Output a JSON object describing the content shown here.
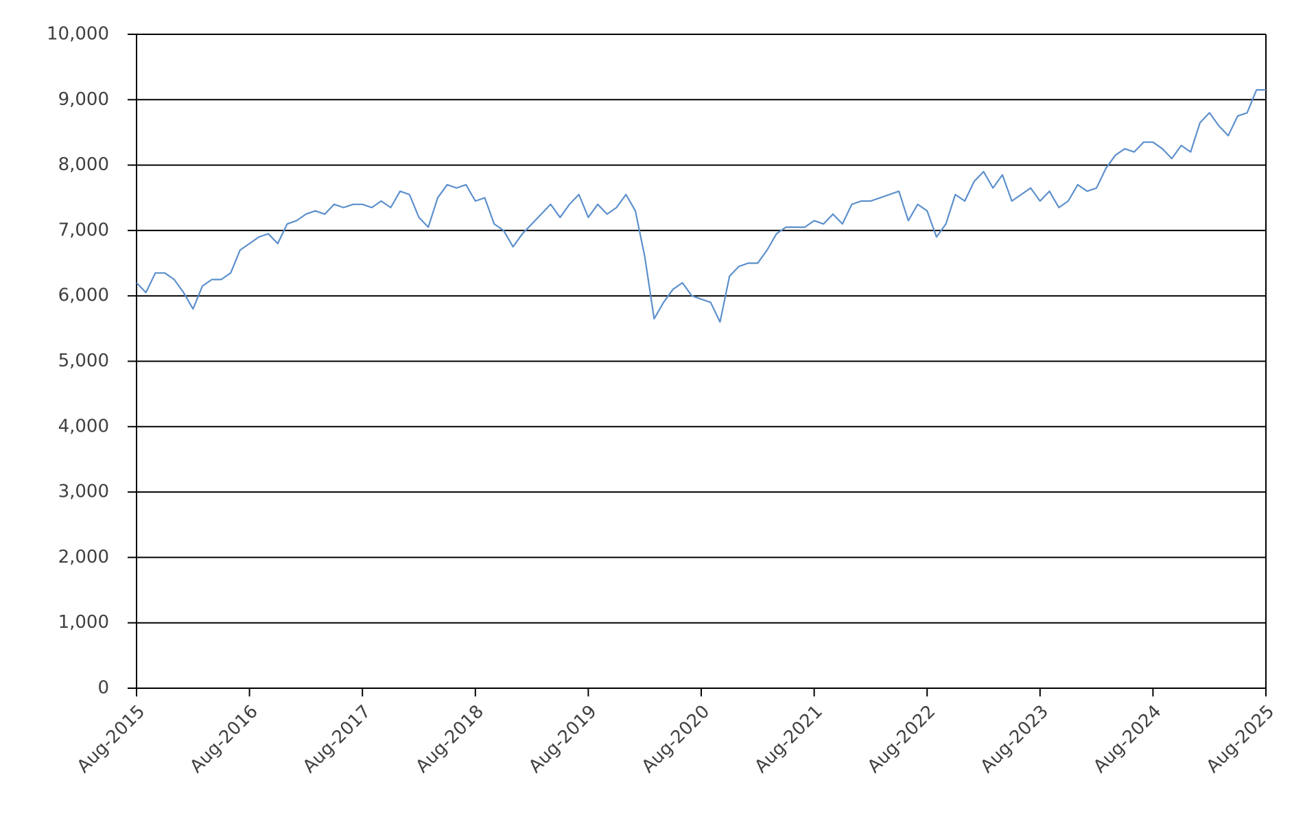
{
  "chart_data": {
    "type": "line",
    "color": "#5b8fcc",
    "x": [
      "2015-08",
      "2015-09",
      "2015-10",
      "2015-11",
      "2015-12",
      "2016-01",
      "2016-02",
      "2016-03",
      "2016-04",
      "2016-05",
      "2016-06",
      "2016-07",
      "2016-08",
      "2016-09",
      "2016-10",
      "2016-11",
      "2016-12",
      "2017-01",
      "2017-02",
      "2017-03",
      "2017-04",
      "2017-05",
      "2017-06",
      "2017-07",
      "2017-08",
      "2017-09",
      "2017-10",
      "2017-11",
      "2017-12",
      "2018-01",
      "2018-02",
      "2018-03",
      "2018-04",
      "2018-05",
      "2018-06",
      "2018-07",
      "2018-08",
      "2018-09",
      "2018-10",
      "2018-11",
      "2018-12",
      "2019-01",
      "2019-02",
      "2019-03",
      "2019-04",
      "2019-05",
      "2019-06",
      "2019-07",
      "2019-08",
      "2019-09",
      "2019-10",
      "2019-11",
      "2019-12",
      "2020-01",
      "2020-02",
      "2020-03",
      "2020-04",
      "2020-05",
      "2020-06",
      "2020-07",
      "2020-08",
      "2020-09",
      "2020-10",
      "2020-11",
      "2020-12",
      "2021-01",
      "2021-02",
      "2021-03",
      "2021-04",
      "2021-05",
      "2021-06",
      "2021-07",
      "2021-08",
      "2021-09",
      "2021-10",
      "2021-11",
      "2021-12",
      "2022-01",
      "2022-02",
      "2022-03",
      "2022-04",
      "2022-05",
      "2022-06",
      "2022-07",
      "2022-08",
      "2022-09",
      "2022-10",
      "2022-11",
      "2022-12",
      "2023-01",
      "2023-02",
      "2023-03",
      "2023-04",
      "2023-05",
      "2023-06",
      "2023-07",
      "2023-08",
      "2023-09",
      "2023-10",
      "2023-11",
      "2023-12",
      "2024-01",
      "2024-02",
      "2024-03",
      "2024-04",
      "2024-05",
      "2024-06",
      "2024-07",
      "2024-08",
      "2024-09",
      "2024-10",
      "2024-11",
      "2024-12",
      "2025-01",
      "2025-02",
      "2025-03",
      "2025-04",
      "2025-05",
      "2025-06",
      "2025-07",
      "2025-08"
    ],
    "values": [
      6200,
      6050,
      6350,
      6350,
      6250,
      6050,
      5800,
      6150,
      6250,
      6250,
      6350,
      6700,
      6800,
      6900,
      6950,
      6800,
      7100,
      7150,
      7250,
      7300,
      7250,
      7400,
      7350,
      7400,
      7400,
      7350,
      7450,
      7350,
      7600,
      7550,
      7200,
      7050,
      7500,
      7700,
      7650,
      7700,
      7450,
      7500,
      7100,
      7000,
      6750,
      6950,
      7100,
      7250,
      7400,
      7200,
      7400,
      7550,
      7200,
      7400,
      7250,
      7350,
      7550,
      7300,
      6600,
      5650,
      5900,
      6100,
      6200,
      6000,
      5950,
      5900,
      5600,
      6300,
      6450,
      6500,
      6500,
      6700,
      6950,
      7050,
      7050,
      7050,
      7150,
      7100,
      7250,
      7100,
      7400,
      7450,
      7450,
      7500,
      7550,
      7600,
      7150,
      7400,
      7300,
      6900,
      7100,
      7550,
      7450,
      7750,
      7900,
      7650,
      7850,
      7450,
      7550,
      7650,
      7450,
      7600,
      7350,
      7450,
      7700,
      7600,
      7650,
      7950,
      8150,
      8250,
      8200,
      8350,
      8350,
      8250,
      8100,
      8300,
      8200,
      8650,
      8800,
      8600,
      8450,
      8750,
      8800,
      9150,
      9150
    ],
    "xlim": [
      "2015-08",
      "2025-08"
    ],
    "xticks": [
      {
        "value": "2015-08",
        "label": "Aug-2015"
      },
      {
        "value": "2016-08",
        "label": "Aug-2016"
      },
      {
        "value": "2017-08",
        "label": "Aug-2017"
      },
      {
        "value": "2018-08",
        "label": "Aug-2018"
      },
      {
        "value": "2019-08",
        "label": "Aug-2019"
      },
      {
        "value": "2020-08",
        "label": "Aug-2020"
      },
      {
        "value": "2021-08",
        "label": "Aug-2021"
      },
      {
        "value": "2022-08",
        "label": "Aug-2022"
      },
      {
        "value": "2023-08",
        "label": "Aug-2023"
      },
      {
        "value": "2024-08",
        "label": "Aug-2024"
      },
      {
        "value": "2025-08",
        "label": "Aug-2025"
      }
    ],
    "ylim": [
      0,
      10000
    ],
    "yticks": [
      0,
      {
        "value": 1000,
        "label": "1,000"
      },
      {
        "value": 2000,
        "label": "2,000"
      },
      {
        "value": 3000,
        "label": "3,000"
      },
      {
        "value": 4000,
        "label": "4,000"
      },
      {
        "value": 5000,
        "label": "5,000"
      },
      {
        "value": 6000,
        "label": "6,000"
      },
      {
        "value": 7000,
        "label": "7,000"
      },
      {
        "value": 8000,
        "label": "8,000"
      },
      {
        "value": 9000,
        "label": "9,000"
      },
      {
        "value": 10000,
        "label": "10,000"
      }
    ],
    "grid": true
  }
}
